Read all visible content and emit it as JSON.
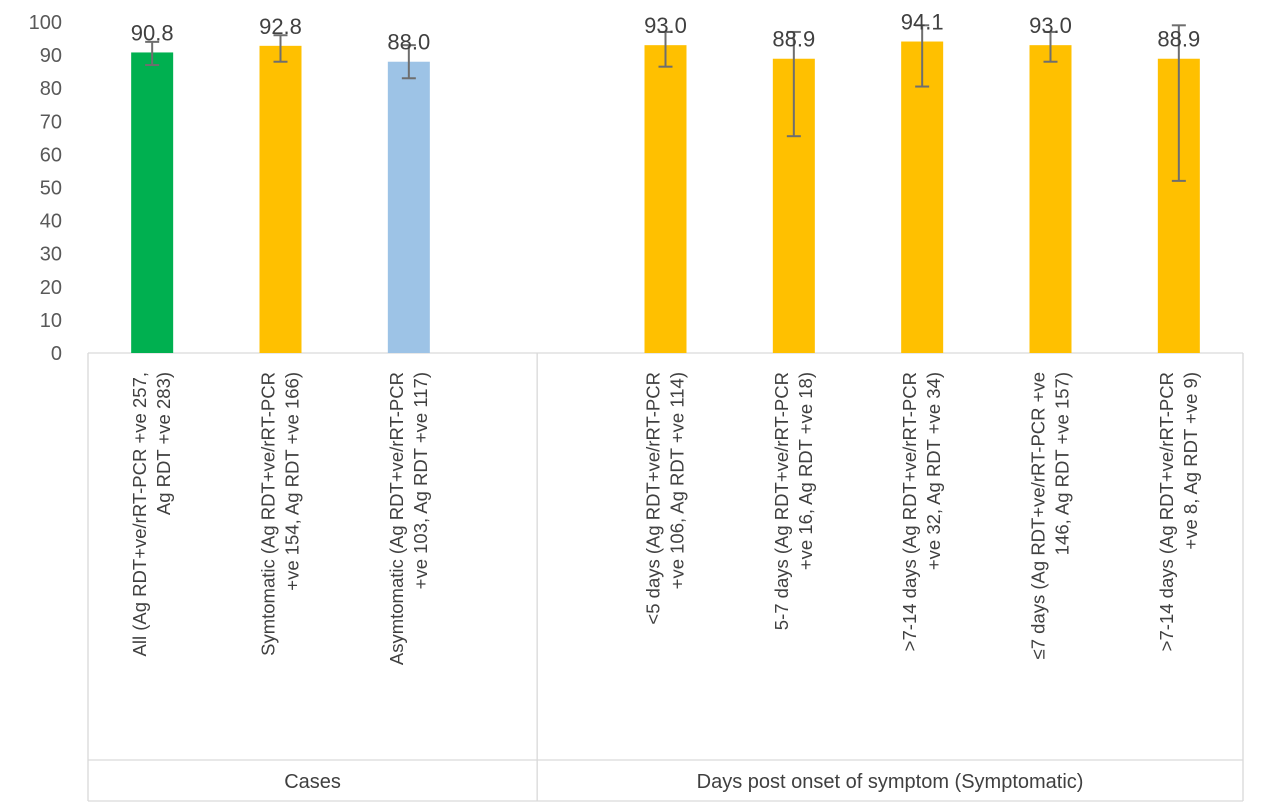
{
  "chart_data": {
    "type": "bar",
    "ylim": [
      0,
      100
    ],
    "ytick_step": 10,
    "yticks": [
      "0",
      "10",
      "20",
      "30",
      "40",
      "50",
      "60",
      "70",
      "80",
      "90",
      "100"
    ],
    "grid": false,
    "legend": "none",
    "groups": [
      {
        "label": "Cases",
        "start": 0,
        "end": 3
      },
      {
        "label": "Days post onset of symptom (Symptomatic)",
        "start": 3,
        "end": 8
      }
    ],
    "categories": [
      {
        "lines": [
          "All  (Ag RDT+ve/rRT-PCR +ve 257,",
          "Ag RDT +ve 283)"
        ],
        "value": 90.8,
        "label": "90.8",
        "err_low": 87.0,
        "err_high": 94.0,
        "color": "#00b050"
      },
      {
        "lines": [
          "Symtomatic (Ag RDT+ve/rRT-PCR",
          "+ve 154, Ag RDT +ve 166)"
        ],
        "value": 92.8,
        "label": "92.8",
        "err_low": 88.0,
        "err_high": 96.0,
        "color": "#ffc000"
      },
      {
        "lines": [
          "Asymtomatic (Ag RDT+ve/rRT-PCR",
          "+ve 103, Ag RDT +ve 117)"
        ],
        "value": 88.0,
        "label": "88.0",
        "err_low": 83.0,
        "err_high": 93.0,
        "color": "#9dc3e6"
      },
      {
        "lines": [
          "<5 days (Ag RDT+ve/rRT-PCR",
          "+ve 106, Ag RDT +ve 114)"
        ],
        "value": 93.0,
        "label": "93.0",
        "err_low": 86.5,
        "err_high": 97.0,
        "color": "#ffc000"
      },
      {
        "lines": [
          "5-7 days (Ag RDT+ve/rRT-PCR",
          "+ve 16, Ag RDT +ve 18)"
        ],
        "value": 88.9,
        "label": "88.9",
        "err_low": 65.5,
        "err_high": 97.0,
        "color": "#ffc000"
      },
      {
        "lines": [
          ">7-14 days (Ag RDT+ve/rRT-PCR",
          "+ve 32, Ag RDT +ve 34)"
        ],
        "value": 94.1,
        "label": "94.1",
        "err_low": 80.5,
        "err_high": 99.0,
        "color": "#ffc000"
      },
      {
        "lines": [
          "≤7 days (Ag RDT+ve/rRT-PCR +ve",
          "146, Ag RDT +ve 157)"
        ],
        "value": 93.0,
        "label": "93.0",
        "err_low": 88.0,
        "err_high": 97.0,
        "color": "#ffc000"
      },
      {
        "lines": [
          ">7-14 days (Ag RDT+ve/rRT-PCR",
          "+ve 8, Ag RDT +ve 9)"
        ],
        "value": 88.9,
        "label": "88.9",
        "err_low": 52.0,
        "err_high": 99.0,
        "color": "#ffc000"
      }
    ]
  }
}
